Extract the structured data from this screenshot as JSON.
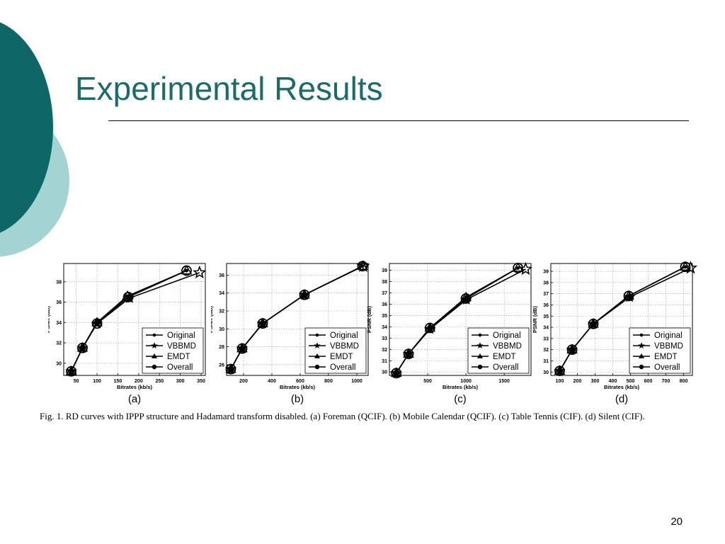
{
  "slide": {
    "title": "Experimental Results",
    "page_number": "20",
    "caption": "Fig. 1.   RD curves with IPPP structure and Hadamard transform disabled. (a) Foreman (QCIF). (b) Mobile Calendar (QCIF). (c) Table Tennis (CIF). (d) Silent (CIF).",
    "colors": {
      "accent_dark": "#0f6666",
      "accent_light": "#a3d3d3",
      "title": "#1b6b6b"
    }
  },
  "chart_data": [
    {
      "type": "line",
      "panel_label": "(a)",
      "xlabel": "Bitrates (kb/s)",
      "ylabel": "PSNR (dB)",
      "xticks": [
        50,
        100,
        150,
        200,
        250,
        300,
        350
      ],
      "yticks": [
        30,
        32,
        34,
        36,
        38
      ],
      "xlim": [
        20,
        360
      ],
      "ylim": [
        28.8,
        39.8
      ],
      "grid": true,
      "legend_position": "bottom-right",
      "series": [
        {
          "name": "Original",
          "marker": "dot",
          "x": [
            38,
            65,
            100,
            173,
            315
          ],
          "y": [
            29.2,
            31.5,
            34.0,
            36.6,
            39.1
          ]
        },
        {
          "name": "VBBMD",
          "marker": "star",
          "x": [
            38,
            65,
            100,
            178,
            346
          ],
          "y": [
            29.2,
            31.5,
            33.9,
            36.4,
            38.9
          ]
        },
        {
          "name": "EMDT",
          "marker": "triangle",
          "x": [
            38,
            65,
            100,
            173,
            315
          ],
          "y": [
            29.2,
            31.5,
            34.0,
            36.6,
            39.1
          ]
        },
        {
          "name": "Overall",
          "marker": "circle",
          "x": [
            38,
            65,
            100,
            175,
            315
          ],
          "y": [
            29.2,
            31.5,
            33.9,
            36.5,
            39.1
          ]
        }
      ]
    },
    {
      "type": "line",
      "panel_label": "(b)",
      "xlabel": "Bitrates (kb/s)",
      "ylabel": "PSNR (dB)",
      "xticks": [
        200,
        400,
        600,
        800,
        1000
      ],
      "yticks": [
        26,
        28,
        30,
        32,
        34,
        36
      ],
      "xlim": [
        80,
        1080
      ],
      "ylim": [
        24.8,
        37.3
      ],
      "grid": true,
      "legend_position": "bottom-right",
      "series": [
        {
          "name": "Original",
          "marker": "dot",
          "x": [
            110,
            190,
            335,
            630,
            1040
          ],
          "y": [
            25.5,
            27.8,
            30.6,
            33.8,
            37.0
          ]
        },
        {
          "name": "VBBMD",
          "marker": "star",
          "x": [
            110,
            190,
            335,
            630,
            1045
          ],
          "y": [
            25.5,
            27.8,
            30.6,
            33.8,
            37.0
          ]
        },
        {
          "name": "EMDT",
          "marker": "triangle",
          "x": [
            110,
            190,
            335,
            630,
            1040
          ],
          "y": [
            25.5,
            27.8,
            30.6,
            33.8,
            37.0
          ]
        },
        {
          "name": "Overall",
          "marker": "circle",
          "x": [
            110,
            190,
            335,
            630,
            1040
          ],
          "y": [
            25.5,
            27.8,
            30.6,
            33.8,
            37.0
          ]
        }
      ]
    },
    {
      "type": "line",
      "panel_label": "(c)",
      "xlabel": "Bitrates (kb/s)",
      "ylabel": "PSNR (dB)",
      "xticks": [
        500,
        1000,
        1500
      ],
      "yticks": [
        30,
        31,
        32,
        33,
        34,
        35,
        36,
        37,
        38,
        39
      ],
      "xlim": [
        0,
        1850
      ],
      "ylim": [
        29.7,
        39.6
      ],
      "grid": true,
      "legend_position": "bottom-right",
      "series": [
        {
          "name": "Original",
          "marker": "dot",
          "x": [
            90,
            250,
            530,
            1000,
            1680
          ],
          "y": [
            29.9,
            31.6,
            33.9,
            36.6,
            39.2
          ]
        },
        {
          "name": "VBBMD",
          "marker": "star",
          "x": [
            90,
            250,
            530,
            1005,
            1780
          ],
          "y": [
            29.9,
            31.6,
            33.8,
            36.4,
            39.1
          ]
        },
        {
          "name": "EMDT",
          "marker": "triangle",
          "x": [
            90,
            250,
            530,
            1000,
            1680
          ],
          "y": [
            29.9,
            31.6,
            33.9,
            36.6,
            39.2
          ]
        },
        {
          "name": "Overall",
          "marker": "circle",
          "x": [
            90,
            250,
            530,
            1000,
            1680
          ],
          "y": [
            29.9,
            31.6,
            33.9,
            36.5,
            39.2
          ]
        }
      ]
    },
    {
      "type": "line",
      "panel_label": "(d)",
      "xlabel": "Bitrates (kb/s)",
      "ylabel": "PSNR (dB)",
      "xticks": [
        100,
        200,
        300,
        400,
        500,
        600,
        700,
        800
      ],
      "yticks": [
        30,
        31,
        32,
        33,
        34,
        35,
        36,
        37,
        38,
        39
      ],
      "xlim": [
        50,
        850
      ],
      "ylim": [
        29.7,
        39.7
      ],
      "grid": true,
      "legend_position": "bottom-right",
      "series": [
        {
          "name": "Original",
          "marker": "dot",
          "x": [
            100,
            170,
            290,
            490,
            810
          ],
          "y": [
            30.1,
            32.0,
            34.3,
            36.8,
            39.4
          ]
        },
        {
          "name": "VBBMD",
          "marker": "star",
          "x": [
            100,
            170,
            290,
            495,
            840
          ],
          "y": [
            30.1,
            32.0,
            34.3,
            36.7,
            39.3
          ]
        },
        {
          "name": "EMDT",
          "marker": "triangle",
          "x": [
            100,
            170,
            290,
            490,
            810
          ],
          "y": [
            30.1,
            32.0,
            34.3,
            36.8,
            39.4
          ]
        },
        {
          "name": "Overall",
          "marker": "circle",
          "x": [
            100,
            170,
            290,
            490,
            810
          ],
          "y": [
            30.1,
            32.0,
            34.3,
            36.8,
            39.4
          ]
        }
      ]
    }
  ]
}
